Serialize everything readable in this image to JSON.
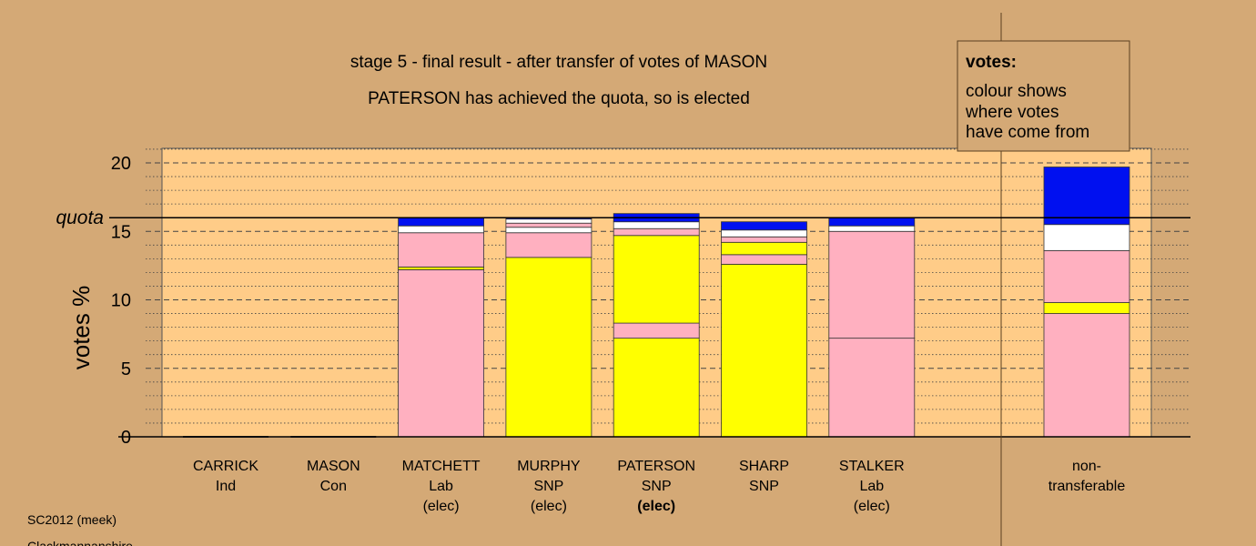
{
  "chart_data": {
    "type": "bar",
    "stacked": true,
    "title": "stage 5 - final result - after transfer of votes of MASON",
    "subtitle": "PATERSON has achieved the quota, so is elected",
    "ylabel": "votes %",
    "ylim": [
      0,
      21
    ],
    "yticks": [
      0,
      5,
      10,
      15,
      20
    ],
    "quota": {
      "label": "quota",
      "value": 16.0
    },
    "grid": true,
    "colors": {
      "yellow": "#ffff00",
      "pink": "#ffb0c0",
      "white": "#ffffff",
      "blue": "#0010f0",
      "plot_bg": "#ffcc88",
      "page_bg": "#d4a976"
    },
    "bars": [
      {
        "name": "CARRICK",
        "lines": [
          "CARRICK",
          "Ind"
        ],
        "elected": false,
        "segments": []
      },
      {
        "name": "MASON",
        "lines": [
          "MASON",
          "Con"
        ],
        "elected": false,
        "segments": []
      },
      {
        "name": "MATCHETT",
        "lines": [
          "MATCHETT",
          "Lab",
          "(elec)"
        ],
        "elected": true,
        "segments": [
          {
            "color": "pink",
            "value": 12.2
          },
          {
            "color": "yellow",
            "value": 0.2
          },
          {
            "color": "pink",
            "value": 2.5
          },
          {
            "color": "white",
            "value": 0.5
          },
          {
            "color": "blue",
            "value": 0.6
          }
        ]
      },
      {
        "name": "MURPHY",
        "lines": [
          "MURPHY",
          "SNP",
          "(elec)"
        ],
        "elected": true,
        "segments": [
          {
            "color": "yellow",
            "value": 13.1
          },
          {
            "color": "pink",
            "value": 1.8
          },
          {
            "color": "white",
            "value": 0.4
          },
          {
            "color": "pink",
            "value": 0.3
          },
          {
            "color": "white",
            "value": 0.3
          },
          {
            "color": "blue",
            "value": 0.1
          }
        ]
      },
      {
        "name": "PATERSON",
        "lines": [
          "PATERSON",
          "SNP",
          "(elec)"
        ],
        "elected": true,
        "elected_bold": true,
        "segments": [
          {
            "color": "yellow",
            "value": 7.2
          },
          {
            "color": "pink",
            "value": 1.1
          },
          {
            "color": "yellow",
            "value": 6.4
          },
          {
            "color": "pink",
            "value": 0.5
          },
          {
            "color": "white",
            "value": 0.5
          },
          {
            "color": "blue",
            "value": 0.6
          }
        ]
      },
      {
        "name": "SHARP",
        "lines": [
          "SHARP",
          "SNP"
        ],
        "elected": false,
        "segments": [
          {
            "color": "yellow",
            "value": 12.6
          },
          {
            "color": "pink",
            "value": 0.7
          },
          {
            "color": "yellow",
            "value": 0.9
          },
          {
            "color": "pink",
            "value": 0.4
          },
          {
            "color": "white",
            "value": 0.5
          },
          {
            "color": "blue",
            "value": 0.6
          }
        ]
      },
      {
        "name": "STALKER",
        "lines": [
          "STALKER",
          "Lab",
          "(elec)"
        ],
        "elected": true,
        "segments": [
          {
            "color": "pink",
            "value": 7.2
          },
          {
            "color": "pink",
            "value": 7.8
          },
          {
            "color": "white",
            "value": 0.4
          },
          {
            "color": "blue",
            "value": 0.6
          }
        ]
      }
    ],
    "nontransferable": {
      "lines": [
        "non-",
        "transferable"
      ],
      "segments": [
        {
          "color": "pink",
          "value": 9.0
        },
        {
          "color": "yellow",
          "value": 0.8
        },
        {
          "color": "pink",
          "value": 3.8
        },
        {
          "color": "white",
          "value": 1.9
        },
        {
          "color": "blue",
          "value": 4.2
        }
      ]
    },
    "legend": {
      "title": "votes:",
      "lines": [
        "colour shows",
        "where votes",
        "have come from"
      ],
      "placement": "top-right"
    }
  },
  "footer": {
    "election": "SC2012 (meek)",
    "area": "Clackmannanshire"
  }
}
